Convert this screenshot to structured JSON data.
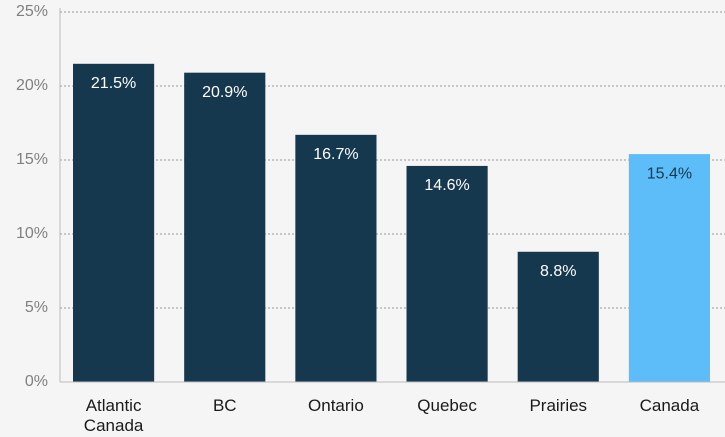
{
  "chart_data": {
    "type": "bar",
    "categories": [
      "Atlantic Canada",
      "BC",
      "Ontario",
      "Quebec",
      "Prairies",
      "Canada"
    ],
    "values": [
      21.5,
      20.9,
      16.7,
      14.6,
      8.8,
      15.4
    ],
    "value_labels": [
      "21.5%",
      "20.9%",
      "16.7%",
      "14.6%",
      "8.8%",
      "15.4%"
    ],
    "colors": [
      "#15384e",
      "#15384e",
      "#15384e",
      "#15384e",
      "#15384e",
      "#5dbdf8"
    ],
    "ylim": [
      0,
      25
    ],
    "yticks": [
      {
        "value": 0,
        "label": "0%"
      },
      {
        "value": 5,
        "label": "5%"
      },
      {
        "value": 10,
        "label": "10%"
      },
      {
        "value": 15,
        "label": "15%"
      },
      {
        "value": 20,
        "label": "20%"
      },
      {
        "value": 25,
        "label": "25%"
      }
    ],
    "grid": true
  }
}
